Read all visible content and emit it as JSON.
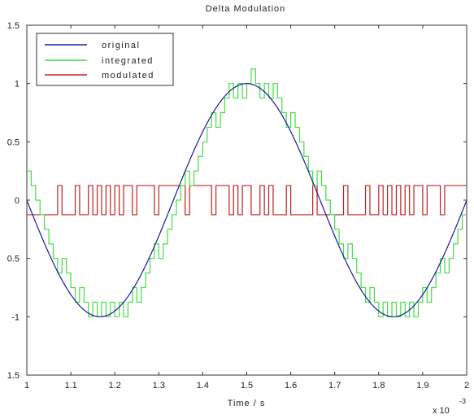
{
  "chart_data": {
    "type": "line",
    "title": "Delta Modulation",
    "xlabel": "Time / s",
    "x_multiplier": "x 10",
    "x_multiplier_exponent": "-3",
    "xlim": [
      1,
      2
    ],
    "ylim": [
      -1.5,
      1.5
    ],
    "x_ticks": [
      "1",
      "1.1",
      "1.2",
      "1.3",
      "1.4",
      "1.5",
      "1.6",
      "1.7",
      "1.8",
      "1.9",
      "2"
    ],
    "y_ticks": [
      "1.5",
      "1",
      "0.5",
      "0",
      "0.5",
      "-1",
      "1.5"
    ],
    "grid": false,
    "legend_position": "top-left",
    "series": [
      {
        "name": "original",
        "color": "#1a1aa0",
        "style": "sinusoid",
        "amplitude": 1,
        "period": 0.667,
        "peak_at": 1.5
      },
      {
        "name": "integrated",
        "color": "#44dd44",
        "style": "staircase",
        "step_size": 0.125,
        "step_interval": 0.01
      },
      {
        "name": "modulated",
        "color": "#c02020",
        "style": "binary",
        "levels": [
          -0.125,
          0.125
        ],
        "step_interval": 0.01
      }
    ]
  }
}
